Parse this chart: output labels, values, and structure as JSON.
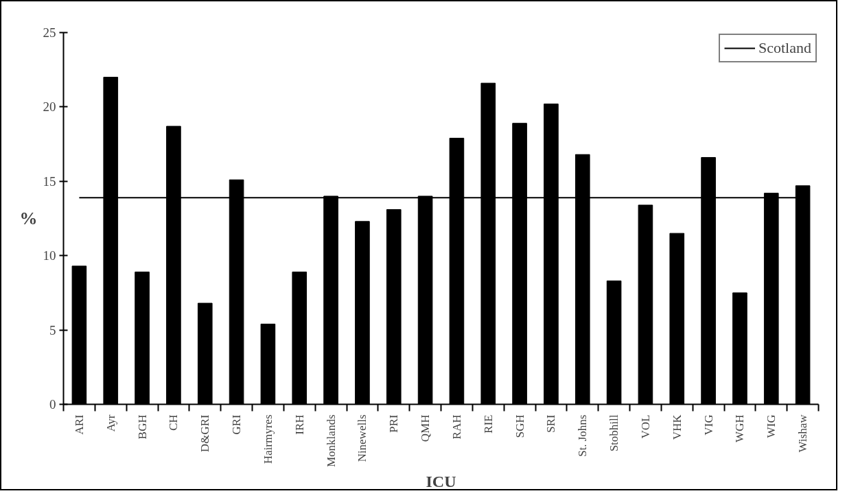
{
  "chart_data": {
    "type": "bar",
    "xlabel": "ICU",
    "ylabel": "%",
    "categories": [
      "ARI",
      "Ayr",
      "BGH",
      "CH",
      "D&GRI",
      "GRI",
      "Hairmyres",
      "IRH",
      "Monklands",
      "Ninewells",
      "PRI",
      "QMH",
      "RAH",
      "RIE",
      "SGH",
      "SRI",
      "St. Johns",
      "Stobhill",
      "VOL",
      "VHK",
      "VIG",
      "WGH",
      "WIG",
      "Wishaw"
    ],
    "values": [
      9.3,
      22.0,
      8.9,
      18.7,
      6.8,
      15.1,
      5.4,
      8.9,
      14.0,
      12.3,
      13.1,
      14.0,
      17.9,
      21.6,
      18.9,
      20.2,
      16.8,
      8.3,
      13.4,
      11.5,
      16.6,
      7.5,
      14.2,
      14.7
    ],
    "color": "#000000",
    "ylim": [
      0,
      25
    ],
    "yticks": [
      0,
      5,
      10,
      15,
      20,
      25
    ],
    "ref_lines": [
      {
        "axis": "y",
        "value": 13.9,
        "label": "Scotland",
        "color": "#000000"
      }
    ],
    "grid": false,
    "legend": "top right"
  }
}
